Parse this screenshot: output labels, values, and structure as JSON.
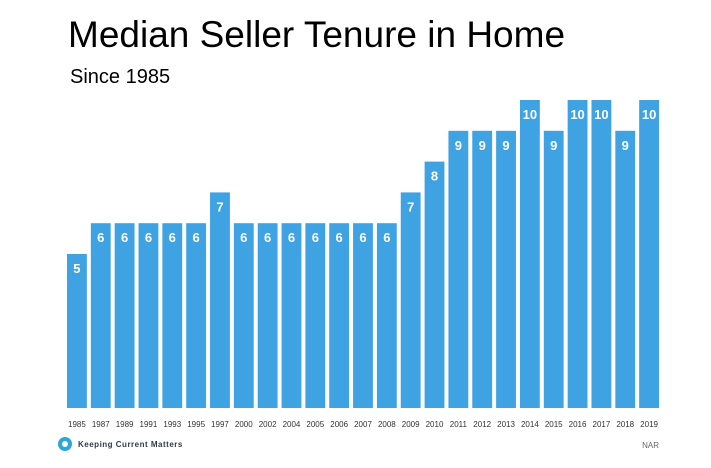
{
  "header": {
    "title": "Median Seller Tenure in Home",
    "subtitle": "Since 1985"
  },
  "footer": {
    "brand": "Keeping Current Matters",
    "source": "NAR"
  },
  "colors": {
    "bar": "#3fa2e3",
    "label": "#ffffff",
    "axis_text": "#333333"
  },
  "chart_data": {
    "type": "bar",
    "categories": [
      "1985",
      "1987",
      "1989",
      "1991",
      "1993",
      "1995",
      "1997",
      "2000",
      "2002",
      "2004",
      "2005",
      "2006",
      "2007",
      "2008",
      "2009",
      "2010",
      "2011",
      "2012",
      "2013",
      "2014",
      "2015",
      "2016",
      "2017",
      "2018",
      "2019"
    ],
    "values": [
      5,
      6,
      6,
      6,
      6,
      6,
      7,
      6,
      6,
      6,
      6,
      6,
      6,
      6,
      7,
      8,
      9,
      9,
      9,
      10,
      9,
      10,
      10,
      9,
      10
    ],
    "title": "Median Seller Tenure in Home",
    "subtitle": "Since 1985",
    "xlabel": "",
    "ylabel": "",
    "ylim": [
      0,
      10
    ],
    "grid": false,
    "legend": "none"
  }
}
